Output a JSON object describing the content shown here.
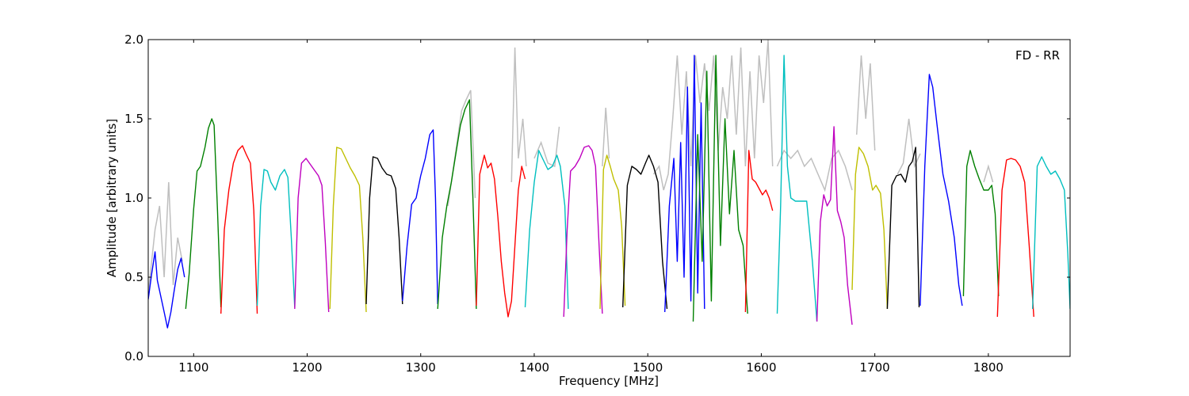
{
  "chart_data": {
    "type": "line",
    "annotation": "FD - RR",
    "xlabel": "Frequency [MHz]",
    "ylabel": "Amplitude [arbitrary units]",
    "xlim": [
      1060,
      1872
    ],
    "ylim": [
      0.0,
      2.0
    ],
    "x_ticks": [
      1100,
      1200,
      1300,
      1400,
      1500,
      1600,
      1700,
      1800
    ],
    "y_ticks": [
      0.0,
      0.5,
      1.0,
      1.5,
      2.0
    ],
    "y_tick_labels": [
      "0.0",
      "0.5",
      "1.0",
      "1.5",
      "2.0"
    ],
    "grid": false,
    "background_series_color": "#bfbfbf",
    "colors": {
      "b": "#0000ff",
      "g": "#008000",
      "r": "#ff0000",
      "c": "#00bfbf",
      "m": "#bf00bf",
      "y": "#bfbf00",
      "k": "#000000"
    },
    "series": [
      {
        "color": "b",
        "x": [
          1060,
          1063,
          1066,
          1068,
          1071,
          1074,
          1077,
          1080,
          1083,
          1086,
          1089,
          1092
        ],
        "y": [
          0.36,
          0.52,
          0.66,
          0.48,
          0.38,
          0.28,
          0.18,
          0.28,
          0.42,
          0.55,
          0.62,
          0.5
        ]
      },
      {
        "color": "g",
        "x": [
          1093,
          1096,
          1100,
          1103,
          1106,
          1110,
          1113,
          1116,
          1118,
          1121,
          1124
        ],
        "y": [
          0.3,
          0.52,
          0.93,
          1.17,
          1.2,
          1.32,
          1.44,
          1.5,
          1.46,
          0.92,
          0.31
        ]
      },
      {
        "color": "r",
        "x": [
          1124,
          1127,
          1131,
          1135,
          1139,
          1143,
          1146,
          1150,
          1153,
          1156
        ],
        "y": [
          0.27,
          0.8,
          1.05,
          1.22,
          1.3,
          1.33,
          1.28,
          1.22,
          0.92,
          0.27
        ]
      },
      {
        "color": "c",
        "x": [
          1156,
          1159,
          1162,
          1165,
          1168,
          1172,
          1176,
          1180,
          1183,
          1186,
          1189
        ],
        "y": [
          0.32,
          0.95,
          1.18,
          1.17,
          1.1,
          1.05,
          1.14,
          1.18,
          1.13,
          0.75,
          0.31
        ]
      },
      {
        "color": "m",
        "x": [
          1189,
          1192,
          1195,
          1199,
          1203,
          1207,
          1210,
          1213,
          1216,
          1219
        ],
        "y": [
          0.3,
          1.0,
          1.22,
          1.25,
          1.21,
          1.17,
          1.14,
          1.08,
          0.72,
          0.28
        ]
      },
      {
        "color": "y",
        "x": [
          1220,
          1223,
          1226,
          1230,
          1234,
          1238,
          1242,
          1246,
          1249,
          1252
        ],
        "y": [
          0.3,
          0.95,
          1.32,
          1.31,
          1.25,
          1.19,
          1.14,
          1.08,
          0.75,
          0.28
        ]
      },
      {
        "color": "k",
        "x": [
          1252,
          1255,
          1258,
          1262,
          1266,
          1270,
          1274,
          1278,
          1281,
          1284
        ],
        "y": [
          0.33,
          1.0,
          1.26,
          1.25,
          1.19,
          1.15,
          1.14,
          1.06,
          0.75,
          0.33
        ]
      },
      {
        "color": "b",
        "x": [
          1284,
          1288,
          1292,
          1296,
          1300,
          1304,
          1308,
          1311,
          1313,
          1315
        ],
        "y": [
          0.35,
          0.7,
          0.96,
          1.0,
          1.14,
          1.25,
          1.4,
          1.43,
          1.0,
          0.33
        ]
      },
      {
        "color": "g",
        "x": [
          1315,
          1319,
          1323,
          1327,
          1331,
          1335,
          1339,
          1343,
          1346,
          1349
        ],
        "y": [
          0.3,
          0.75,
          0.95,
          1.1,
          1.28,
          1.46,
          1.56,
          1.62,
          1.0,
          0.3
        ]
      },
      {
        "color": "r",
        "x": [
          1349,
          1352,
          1356,
          1359,
          1362,
          1365,
          1368,
          1371,
          1374,
          1377,
          1380,
          1383,
          1386,
          1389,
          1392
        ],
        "y": [
          0.32,
          1.15,
          1.27,
          1.19,
          1.22,
          1.12,
          0.88,
          0.6,
          0.4,
          0.25,
          0.35,
          0.7,
          1.05,
          1.2,
          1.12
        ]
      },
      {
        "color": "c",
        "x": [
          1392,
          1396,
          1400,
          1404,
          1408,
          1412,
          1416,
          1420,
          1423,
          1427,
          1430
        ],
        "y": [
          0.31,
          0.8,
          1.1,
          1.3,
          1.24,
          1.18,
          1.2,
          1.27,
          1.2,
          0.95,
          0.3
        ]
      },
      {
        "color": "m",
        "x": [
          1426,
          1429,
          1432,
          1436,
          1440,
          1444,
          1448,
          1451,
          1454,
          1457,
          1460
        ],
        "y": [
          0.25,
          0.8,
          1.17,
          1.2,
          1.25,
          1.32,
          1.33,
          1.3,
          1.2,
          0.72,
          0.27
        ]
      },
      {
        "color": "y",
        "x": [
          1458,
          1461,
          1464,
          1467,
          1470,
          1474,
          1477,
          1480
        ],
        "y": [
          0.3,
          1.18,
          1.27,
          1.2,
          1.12,
          1.05,
          0.82,
          0.32
        ]
      },
      {
        "color": "k",
        "x": [
          1478,
          1482,
          1486,
          1490,
          1494,
          1498,
          1501,
          1505,
          1509,
          1513,
          1517
        ],
        "y": [
          0.31,
          1.08,
          1.2,
          1.18,
          1.15,
          1.22,
          1.27,
          1.2,
          1.1,
          0.6,
          0.3
        ]
      },
      {
        "color": "b",
        "x": [
          1515,
          1519,
          1523,
          1526,
          1529,
          1532,
          1535,
          1538,
          1541,
          1544,
          1547,
          1550
        ],
        "y": [
          0.28,
          0.95,
          1.25,
          0.6,
          1.35,
          0.5,
          1.7,
          0.35,
          1.9,
          0.4,
          1.6,
          0.3
        ]
      },
      {
        "color": "g",
        "x": [
          1540,
          1544,
          1548,
          1552,
          1556,
          1560,
          1564,
          1568,
          1572,
          1576,
          1580,
          1584,
          1588
        ],
        "y": [
          0.22,
          1.4,
          0.6,
          1.8,
          0.35,
          1.9,
          0.7,
          1.5,
          0.9,
          1.3,
          0.8,
          0.7,
          0.27
        ]
      },
      {
        "color": "r",
        "x": [
          1586,
          1589,
          1592,
          1595,
          1598,
          1601,
          1604,
          1607,
          1610
        ],
        "y": [
          0.28,
          1.3,
          1.12,
          1.1,
          1.06,
          1.02,
          1.05,
          1.0,
          0.92
        ]
      },
      {
        "color": "c",
        "x": [
          1614,
          1617,
          1620,
          1623,
          1626,
          1630,
          1635,
          1640,
          1645,
          1649
        ],
        "y": [
          0.27,
          0.95,
          1.9,
          1.2,
          1.0,
          0.98,
          0.98,
          0.98,
          0.6,
          0.22
        ]
      },
      {
        "color": "m",
        "x": [
          1649,
          1652,
          1655,
          1658,
          1661,
          1664,
          1667,
          1670,
          1673,
          1676,
          1680
        ],
        "y": [
          0.22,
          0.85,
          1.02,
          0.95,
          0.99,
          1.45,
          0.92,
          0.85,
          0.75,
          0.45,
          0.2
        ]
      },
      {
        "color": "y",
        "x": [
          1680,
          1683,
          1686,
          1690,
          1694,
          1698,
          1701,
          1705,
          1708,
          1711
        ],
        "y": [
          0.42,
          1.15,
          1.32,
          1.28,
          1.2,
          1.05,
          1.08,
          1.03,
          0.8,
          0.3
        ]
      },
      {
        "color": "k",
        "x": [
          1711,
          1715,
          1719,
          1723,
          1727,
          1730,
          1733,
          1736,
          1739
        ],
        "y": [
          0.3,
          1.08,
          1.14,
          1.15,
          1.1,
          1.2,
          1.23,
          1.32,
          0.31
        ]
      },
      {
        "color": "b",
        "x": [
          1740,
          1744,
          1748,
          1751,
          1755,
          1760,
          1765,
          1770,
          1774,
          1777
        ],
        "y": [
          0.32,
          1.2,
          1.78,
          1.7,
          1.45,
          1.15,
          0.98,
          0.75,
          0.45,
          0.32
        ]
      },
      {
        "color": "g",
        "x": [
          1778,
          1781,
          1784,
          1788,
          1792,
          1796,
          1800,
          1803,
          1806,
          1809
        ],
        "y": [
          0.38,
          1.2,
          1.3,
          1.2,
          1.12,
          1.05,
          1.05,
          1.08,
          0.9,
          0.38
        ]
      },
      {
        "color": "r",
        "x": [
          1808,
          1812,
          1816,
          1820,
          1824,
          1828,
          1832,
          1836,
          1840
        ],
        "y": [
          0.25,
          1.05,
          1.24,
          1.25,
          1.24,
          1.2,
          1.1,
          0.7,
          0.25
        ]
      },
      {
        "color": "c",
        "x": [
          1839,
          1843,
          1847,
          1851,
          1855,
          1859,
          1863,
          1867,
          1870,
          1872
        ],
        "y": [
          0.3,
          1.2,
          1.26,
          1.2,
          1.15,
          1.17,
          1.12,
          1.05,
          0.65,
          0.3
        ]
      }
    ],
    "background_series": [
      {
        "x": [
          1060,
          1066,
          1070,
          1074,
          1078,
          1082,
          1086,
          1090
        ],
        "y": [
          0.4,
          0.8,
          0.95,
          0.5,
          1.1,
          0.45,
          0.75,
          0.6
        ]
      },
      {
        "x": [
          1324,
          1330,
          1336,
          1340,
          1344,
          1348
        ],
        "y": [
          0.95,
          1.25,
          1.55,
          1.62,
          1.68,
          1.0
        ]
      },
      {
        "x": [
          1380,
          1383,
          1386,
          1390,
          1393
        ],
        "y": [
          1.1,
          1.95,
          1.25,
          1.5,
          1.2
        ]
      },
      {
        "x": [
          1400,
          1406,
          1412,
          1418,
          1422
        ],
        "y": [
          1.25,
          1.35,
          1.22,
          1.2,
          1.45
        ]
      },
      {
        "x": [
          1460,
          1463,
          1466
        ],
        "y": [
          1.2,
          1.57,
          1.25
        ]
      },
      {
        "x": [
          1505,
          1510,
          1514,
          1518,
          1522,
          1526,
          1530,
          1534,
          1538,
          1542,
          1546,
          1550,
          1554,
          1558,
          1562,
          1566,
          1570,
          1574,
          1578,
          1582,
          1586,
          1590,
          1594,
          1598,
          1602,
          1606,
          1610
        ],
        "y": [
          1.15,
          1.2,
          1.05,
          1.15,
          1.5,
          1.9,
          1.4,
          1.8,
          1.2,
          1.9,
          1.6,
          1.85,
          1.55,
          1.9,
          1.3,
          1.7,
          1.5,
          1.9,
          1.4,
          1.95,
          1.2,
          1.8,
          1.25,
          1.9,
          1.6,
          2.0,
          1.2
        ]
      },
      {
        "x": [
          1614,
          1620,
          1626,
          1632,
          1638,
          1644,
          1650,
          1656,
          1662,
          1668,
          1674,
          1680
        ],
        "y": [
          1.2,
          1.3,
          1.25,
          1.3,
          1.2,
          1.25,
          1.15,
          1.05,
          1.25,
          1.3,
          1.2,
          1.05
        ]
      },
      {
        "x": [
          1684,
          1688,
          1692,
          1696,
          1700
        ],
        "y": [
          1.4,
          1.9,
          1.5,
          1.85,
          1.3
        ]
      },
      {
        "x": [
          1720,
          1725,
          1730,
          1735,
          1740
        ],
        "y": [
          1.15,
          1.22,
          1.5,
          1.2,
          1.28
        ]
      },
      {
        "x": [
          1796,
          1800,
          1804
        ],
        "y": [
          1.1,
          1.2,
          1.1
        ]
      }
    ]
  }
}
